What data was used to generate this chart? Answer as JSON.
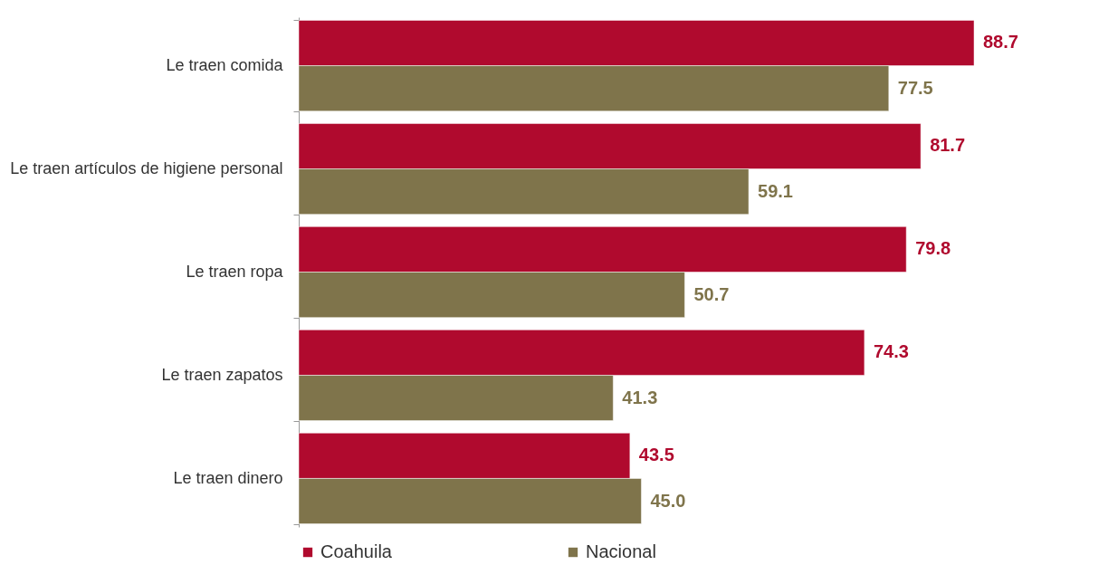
{
  "chart_data": {
    "type": "bar",
    "orientation": "horizontal",
    "categories": [
      "Le traen comida",
      "Le traen artículos de higiene personal",
      "Le traen ropa",
      "Le traen zapatos",
      "Le traen dinero"
    ],
    "series": [
      {
        "name": "Coahuila",
        "color": "#b00a2e",
        "values": [
          88.7,
          81.7,
          79.8,
          74.3,
          43.5
        ],
        "value_labels": [
          "88.7",
          "81.7",
          "79.8",
          "74.3",
          "43.5"
        ]
      },
      {
        "name": "Nacional",
        "color": "#7f744b",
        "values": [
          77.5,
          59.1,
          50.7,
          41.3,
          45.0
        ],
        "value_labels": [
          "77.5",
          "59.1",
          "50.7",
          "41.3",
          "45.0"
        ]
      }
    ],
    "legend": "bottom",
    "grid": false,
    "tick_labels": "y"
  }
}
